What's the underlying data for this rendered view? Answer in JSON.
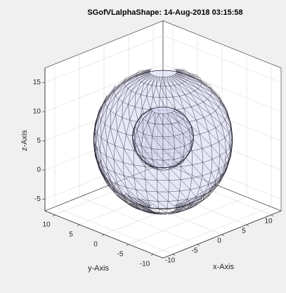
{
  "chart_data": {
    "type": "surface3d",
    "title": "SGofVLalphaShape: 14-Aug-2018 03:15:58",
    "xlabel": "x-Axis",
    "ylabel": "y-Axis",
    "zlabel": "z-Axis",
    "xlim": [
      -12,
      12
    ],
    "ylim": [
      -12,
      12
    ],
    "zlim": [
      -7,
      17.5
    ],
    "xticks": [
      -10,
      -5,
      0,
      5,
      10
    ],
    "yticks": [
      -10,
      -5,
      0,
      5,
      10
    ],
    "zticks": [
      -5,
      0,
      5,
      10,
      15
    ],
    "grid": true,
    "face_color": "#d4d4ee",
    "edge_color": "#1a1a2a"
  }
}
